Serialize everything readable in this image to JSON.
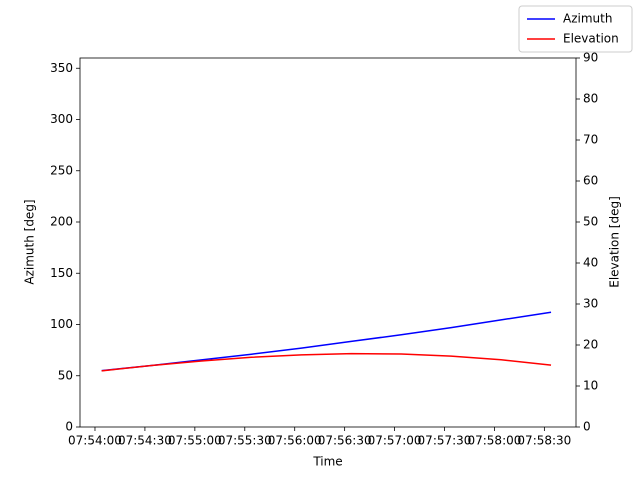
{
  "chart_data": {
    "type": "line",
    "x_label": "Time",
    "y_label": "Azimuth [deg]",
    "y2_label": "Elevation [deg]",
    "x": [
      "07:54:04",
      "07:54:34",
      "07:55:04",
      "07:55:34",
      "07:56:04",
      "07:56:34",
      "07:57:04",
      "07:57:34",
      "07:58:04",
      "07:58:34"
    ],
    "series": [
      {
        "name": "Azimuth",
        "color": "#0000ff",
        "values": [
          55,
          60,
          65.5,
          71,
          77,
          83.5,
          90,
          97,
          104.5,
          112
        ]
      },
      {
        "name": "Elevation",
        "color": "#ff0000",
        "axis": "y2",
        "values": [
          13.7,
          15.0,
          16.1,
          17.0,
          17.6,
          17.9,
          17.8,
          17.3,
          16.4,
          15.1
        ]
      }
    ],
    "xlim": [
      "07:53:51",
      "07:58:49"
    ],
    "xticks": [
      "07:54:00",
      "07:54:30",
      "07:55:00",
      "07:55:30",
      "07:56:00",
      "07:56:30",
      "07:57:00",
      "07:57:30",
      "07:58:00",
      "07:58:30"
    ],
    "ylim": [
      0,
      360
    ],
    "yticks": [
      0,
      50,
      100,
      150,
      200,
      250,
      300,
      350
    ],
    "y2lim": [
      0,
      90
    ],
    "y2ticks": [
      0,
      10,
      20,
      30,
      40,
      50,
      60,
      70,
      80,
      90
    ],
    "legend": "upper right"
  }
}
